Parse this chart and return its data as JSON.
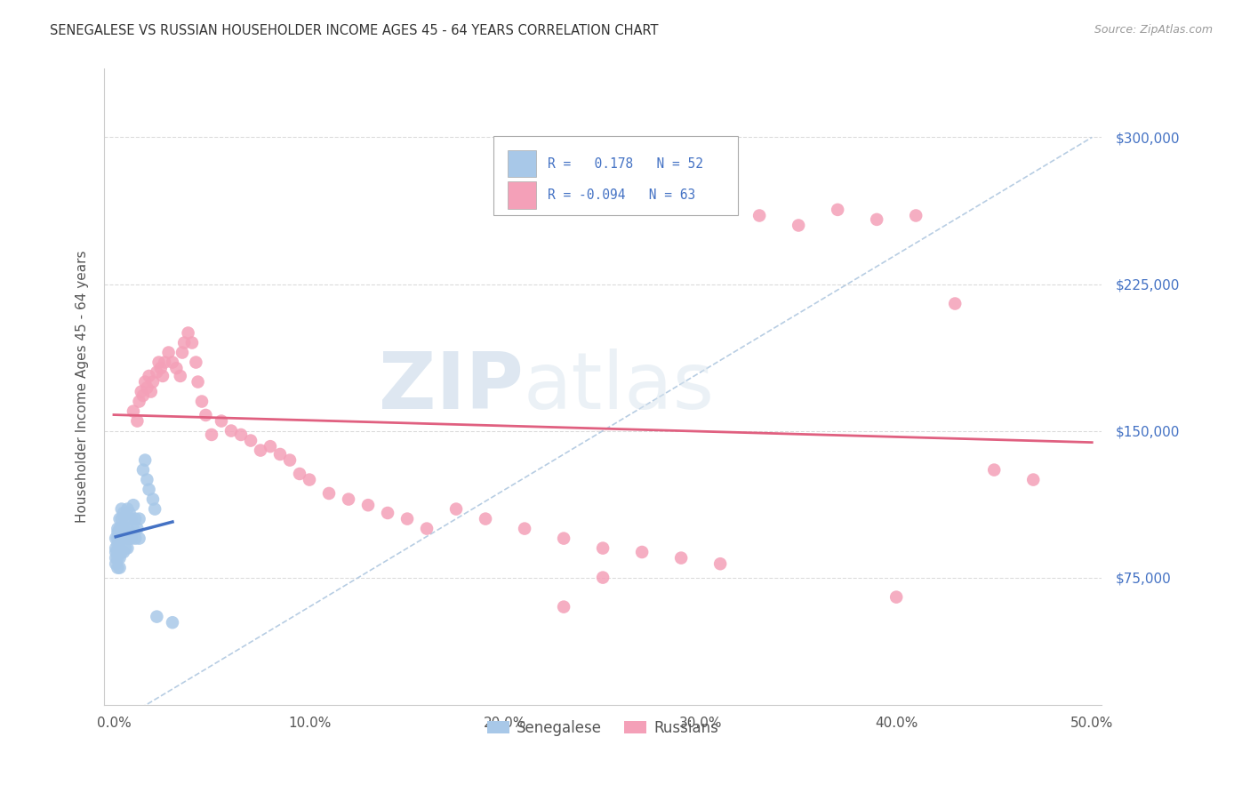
{
  "title": "SENEGALESE VS RUSSIAN HOUSEHOLDER INCOME AGES 45 - 64 YEARS CORRELATION CHART",
  "source": "Source: ZipAtlas.com",
  "ylabel": "Householder Income Ages 45 - 64 years",
  "ylabel_ticks": [
    "$75,000",
    "$150,000",
    "$225,000",
    "$300,000"
  ],
  "ylabel_vals": [
    75000,
    150000,
    225000,
    300000
  ],
  "xlim": [
    -0.005,
    0.505
  ],
  "ylim": [
    10000,
    335000
  ],
  "R_senegalese": 0.178,
  "N_senegalese": 52,
  "R_russians": -0.094,
  "N_russians": 63,
  "color_senegalese": "#a8c8e8",
  "color_russians": "#f4a0b8",
  "color_blue_line": "#4472c4",
  "color_pink_line": "#e06080",
  "color_dashed": "#b0c8e0",
  "senegalese_x": [
    0.001,
    0.001,
    0.001,
    0.001,
    0.001,
    0.002,
    0.002,
    0.002,
    0.002,
    0.002,
    0.002,
    0.002,
    0.003,
    0.003,
    0.003,
    0.003,
    0.003,
    0.003,
    0.004,
    0.004,
    0.004,
    0.004,
    0.004,
    0.005,
    0.005,
    0.005,
    0.005,
    0.006,
    0.006,
    0.006,
    0.007,
    0.007,
    0.007,
    0.008,
    0.008,
    0.009,
    0.009,
    0.01,
    0.01,
    0.011,
    0.011,
    0.012,
    0.013,
    0.013,
    0.015,
    0.016,
    0.017,
    0.018,
    0.02,
    0.021,
    0.022,
    0.03
  ],
  "senegalese_y": [
    95000,
    90000,
    88000,
    85000,
    82000,
    100000,
    98000,
    95000,
    92000,
    88000,
    85000,
    80000,
    105000,
    100000,
    95000,
    90000,
    85000,
    80000,
    110000,
    105000,
    100000,
    95000,
    88000,
    108000,
    100000,
    95000,
    88000,
    105000,
    98000,
    90000,
    110000,
    100000,
    90000,
    108000,
    95000,
    105000,
    95000,
    112000,
    100000,
    105000,
    95000,
    100000,
    105000,
    95000,
    130000,
    135000,
    125000,
    120000,
    115000,
    110000,
    55000,
    52000
  ],
  "russians_x": [
    0.01,
    0.012,
    0.013,
    0.014,
    0.015,
    0.016,
    0.017,
    0.018,
    0.019,
    0.02,
    0.022,
    0.023,
    0.024,
    0.025,
    0.026,
    0.028,
    0.03,
    0.032,
    0.034,
    0.035,
    0.036,
    0.038,
    0.04,
    0.042,
    0.043,
    0.045,
    0.047,
    0.05,
    0.055,
    0.06,
    0.065,
    0.07,
    0.075,
    0.08,
    0.085,
    0.09,
    0.095,
    0.1,
    0.11,
    0.12,
    0.13,
    0.14,
    0.15,
    0.16,
    0.175,
    0.19,
    0.21,
    0.23,
    0.25,
    0.27,
    0.29,
    0.31,
    0.33,
    0.35,
    0.37,
    0.39,
    0.41,
    0.43,
    0.45,
    0.47,
    0.23,
    0.25,
    0.4
  ],
  "russians_y": [
    160000,
    155000,
    165000,
    170000,
    168000,
    175000,
    172000,
    178000,
    170000,
    175000,
    180000,
    185000,
    182000,
    178000,
    185000,
    190000,
    185000,
    182000,
    178000,
    190000,
    195000,
    200000,
    195000,
    185000,
    175000,
    165000,
    158000,
    148000,
    155000,
    150000,
    148000,
    145000,
    140000,
    142000,
    138000,
    135000,
    128000,
    125000,
    118000,
    115000,
    112000,
    108000,
    105000,
    100000,
    110000,
    105000,
    100000,
    95000,
    90000,
    88000,
    85000,
    82000,
    260000,
    255000,
    263000,
    258000,
    260000,
    215000,
    130000,
    125000,
    60000,
    75000,
    65000
  ]
}
